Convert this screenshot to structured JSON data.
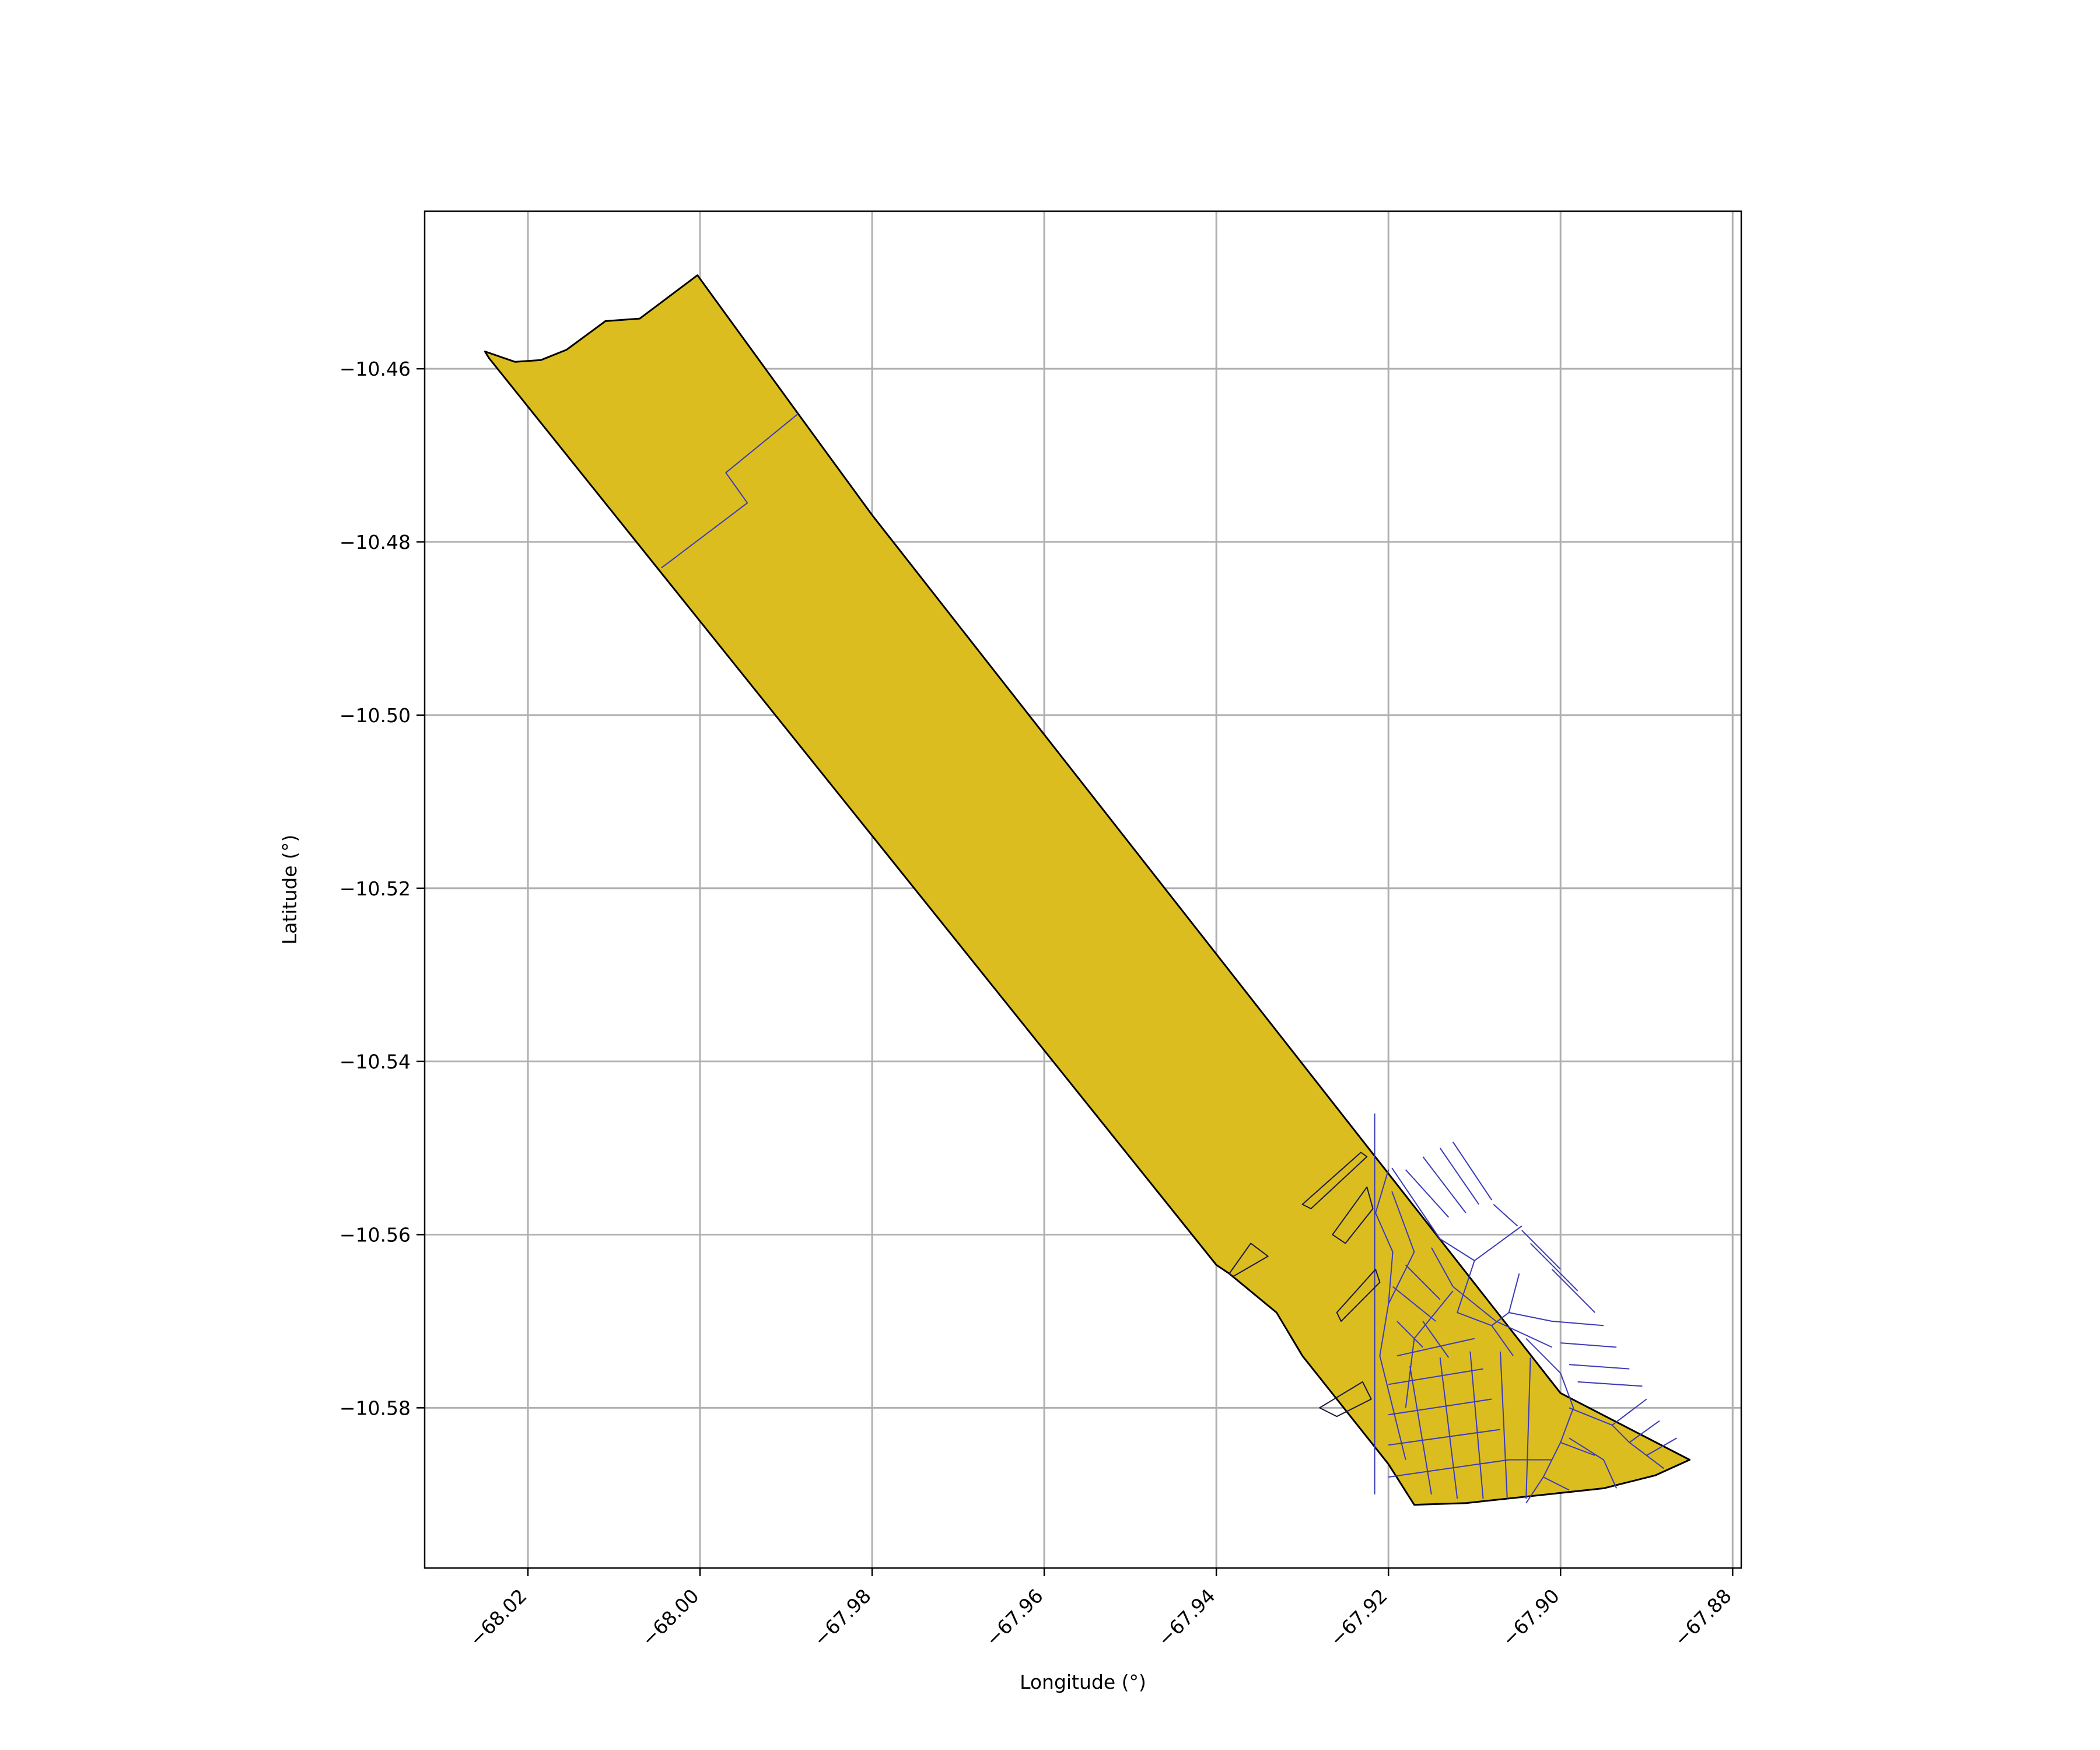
{
  "map": {
    "xlabel": "Longitude (°)",
    "ylabel": "Latitude (°)",
    "xlim": [
      -68.032,
      -67.879
    ],
    "ylim": [
      -10.5985,
      -10.4418
    ],
    "xticks": [
      -68.02,
      -68.0,
      -67.98,
      -67.96,
      -67.94,
      -67.92,
      -67.9,
      -67.88
    ],
    "xtick_labels": [
      "−68.02",
      "−68.00",
      "−67.98",
      "−67.96",
      "−67.94",
      "−67.92",
      "−67.90",
      "−67.88"
    ],
    "yticks": [
      -10.46,
      -10.48,
      -10.5,
      -10.52,
      -10.54,
      -10.56,
      -10.58
    ],
    "ytick_labels": [
      "−10.46",
      "−10.48",
      "−10.50",
      "−10.52",
      "−10.54",
      "−10.56",
      "−10.58"
    ],
    "grid": true,
    "colors": {
      "fill": "#dcbd20",
      "outline": "#000000",
      "parcel_edges": "#3b3bb8",
      "grid": "#b0b0b0"
    },
    "outline": [
      [
        -68.025,
        -10.458
      ],
      [
        -68.0215,
        -10.4592
      ],
      [
        -68.0185,
        -10.459
      ],
      [
        -68.0155,
        -10.4578
      ],
      [
        -68.011,
        -10.4545
      ],
      [
        -68.007,
        -10.4542
      ],
      [
        -68.0003,
        -10.4492
      ],
      [
        -67.9886,
        -10.4652
      ],
      [
        -67.98,
        -10.4769
      ],
      [
        -67.9,
        -10.5783
      ],
      [
        -67.885,
        -10.586
      ],
      [
        -67.889,
        -10.5878
      ],
      [
        -67.895,
        -10.5893
      ],
      [
        -67.911,
        -10.591
      ],
      [
        -67.917,
        -10.5912
      ],
      [
        -67.92,
        -10.5865
      ],
      [
        -67.93,
        -10.574
      ],
      [
        -67.933,
        -10.569
      ],
      [
        -67.9385,
        -10.5645
      ],
      [
        -67.94,
        -10.5635
      ],
      [
        -68.0245,
        -10.4588
      ]
    ],
    "parcel_polylines": [
      [
        [
          -67.9886,
          -10.4652
        ],
        [
          -67.997,
          -10.472
        ],
        [
          -67.9945,
          -10.4755
        ],
        [
          -68.0045,
          -10.483
        ]
      ],
      [
        [
          -67.9216,
          -10.546
        ],
        [
          -67.9216,
          -10.59
        ]
      ],
      [
        [
          -67.92,
          -10.5525
        ],
        [
          -67.9215,
          -10.5575
        ],
        [
          -67.9195,
          -10.562
        ],
        [
          -67.92,
          -10.568
        ],
        [
          -67.921,
          -10.574
        ],
        [
          -67.9195,
          -10.58
        ],
        [
          -67.918,
          -10.586
        ]
      ],
      [
        [
          -67.9196,
          -10.5523
        ],
        [
          -67.914,
          -10.5605
        ],
        [
          -67.91,
          -10.563
        ],
        [
          -67.9045,
          -10.559
        ]
      ],
      [
        [
          -67.915,
          -10.5615
        ],
        [
          -67.9125,
          -10.566
        ],
        [
          -67.9075,
          -10.57
        ],
        [
          -67.901,
          -10.573
        ]
      ],
      [
        [
          -67.91,
          -10.563
        ],
        [
          -67.912,
          -10.569
        ],
        [
          -67.908,
          -10.5705
        ],
        [
          -67.906,
          -10.569
        ],
        [
          -67.9048,
          -10.5645
        ]
      ],
      [
        [
          -67.9125,
          -10.5665
        ],
        [
          -67.917,
          -10.572
        ],
        [
          -67.918,
          -10.58
        ]
      ],
      [
        [
          -67.904,
          -10.572
        ],
        [
          -67.9,
          -10.576
        ],
        [
          -67.8985,
          -10.58
        ],
        [
          -67.9,
          -10.584
        ],
        [
          -67.902,
          -10.588
        ],
        [
          -67.904,
          -10.591
        ]
      ],
      [
        [
          -67.899,
          -10.58
        ],
        [
          -67.894,
          -10.582
        ],
        [
          -67.892,
          -10.584
        ],
        [
          -67.888,
          -10.587
        ]
      ],
      [
        [
          -67.899,
          -10.5835
        ],
        [
          -67.895,
          -10.586
        ],
        [
          -67.8935,
          -10.5893
        ]
      ],
      [
        [
          -67.92,
          -10.588
        ],
        [
          -67.906,
          -10.586
        ],
        [
          -67.901,
          -10.586
        ]
      ],
      [
        [
          -67.92,
          -10.5843
        ],
        [
          -67.907,
          -10.5825
        ]
      ],
      [
        [
          -67.92,
          -10.5808
        ],
        [
          -67.908,
          -10.579
        ]
      ],
      [
        [
          -67.92,
          -10.5773
        ],
        [
          -67.909,
          -10.5755
        ]
      ],
      [
        [
          -67.919,
          -10.574
        ],
        [
          -67.91,
          -10.572
        ]
      ],
      [
        [
          -67.9175,
          -10.5752
        ],
        [
          -67.915,
          -10.59
        ]
      ],
      [
        [
          -67.914,
          -10.5742
        ],
        [
          -67.912,
          -10.5905
        ]
      ],
      [
        [
          -67.9105,
          -10.5735
        ],
        [
          -67.909,
          -10.5905
        ]
      ],
      [
        [
          -67.907,
          -10.5735
        ],
        [
          -67.9062,
          -10.5905
        ]
      ],
      [
        [
          -67.9035,
          -10.5742
        ],
        [
          -67.904,
          -10.5905
        ]
      ],
      [
        [
          -67.916,
          -10.57
        ],
        [
          -67.913,
          -10.5742
        ]
      ],
      [
        [
          -67.908,
          -10.5705
        ],
        [
          -67.9055,
          -10.574
        ]
      ],
      [
        [
          -67.92,
          -10.568
        ],
        [
          -67.917,
          -10.562
        ],
        [
          -67.9196,
          -10.555
        ]
      ],
      [
        [
          -67.918,
          -10.5635
        ],
        [
          -67.914,
          -10.5675
        ]
      ],
      [
        [
          -67.9195,
          -10.566
        ],
        [
          -67.9145,
          -10.57
        ]
      ],
      [
        [
          -67.919,
          -10.57
        ],
        [
          -67.916,
          -10.573
        ]
      ],
      [
        [
          -67.918,
          -10.5525
        ],
        [
          -67.913,
          -10.558
        ]
      ],
      [
        [
          -67.916,
          -10.551
        ],
        [
          -67.911,
          -10.5575
        ]
      ],
      [
        [
          -67.914,
          -10.55
        ],
        [
          -67.9095,
          -10.5565
        ]
      ],
      [
        [
          -67.9125,
          -10.5493
        ],
        [
          -67.908,
          -10.556
        ]
      ],
      [
        [
          -67.9078,
          -10.5565
        ],
        [
          -67.905,
          -10.559
        ]
      ],
      [
        [
          -67.9045,
          -10.5595
        ],
        [
          -67.9,
          -10.564
        ]
      ],
      [
        [
          -67.9035,
          -10.561
        ],
        [
          -67.898,
          -10.5665
        ]
      ],
      [
        [
          -67.901,
          -10.564
        ],
        [
          -67.896,
          -10.569
        ]
      ],
      [
        [
          -67.901,
          -10.57
        ],
        [
          -67.895,
          -10.5705
        ]
      ],
      [
        [
          -67.9,
          -10.5725
        ],
        [
          -67.8935,
          -10.573
        ]
      ],
      [
        [
          -67.899,
          -10.575
        ],
        [
          -67.892,
          -10.5755
        ]
      ],
      [
        [
          -67.898,
          -10.577
        ],
        [
          -67.8905,
          -10.5775
        ]
      ],
      [
        [
          -67.906,
          -10.569
        ],
        [
          -67.901,
          -10.57
        ]
      ],
      [
        [
          -67.894,
          -10.582
        ],
        [
          -67.89,
          -10.579
        ]
      ],
      [
        [
          -67.892,
          -10.584
        ],
        [
          -67.8885,
          -10.5815
        ]
      ],
      [
        [
          -67.89,
          -10.5855
        ],
        [
          -67.8865,
          -10.5835
        ]
      ],
      [
        [
          -67.902,
          -10.588
        ],
        [
          -67.899,
          -10.5895
        ]
      ],
      [
        [
          -67.9,
          -10.584
        ],
        [
          -67.896,
          -10.5855
        ]
      ]
    ],
    "parcel_polygons": [
      [
        [
          -67.93,
          -10.5565
        ],
        [
          -67.9232,
          -10.5505
        ],
        [
          -67.9225,
          -10.551
        ],
        [
          -67.929,
          -10.557
        ]
      ],
      [
        [
          -67.9265,
          -10.56
        ],
        [
          -67.9225,
          -10.5545
        ],
        [
          -67.9218,
          -10.557
        ],
        [
          -67.925,
          -10.561
        ]
      ],
      [
        [
          -67.926,
          -10.569
        ],
        [
          -67.9215,
          -10.564
        ],
        [
          -67.921,
          -10.5655
        ],
        [
          -67.9255,
          -10.57
        ]
      ],
      [
        [
          -67.9385,
          -10.5645
        ],
        [
          -67.936,
          -10.561
        ],
        [
          -67.934,
          -10.5625
        ],
        [
          -67.938,
          -10.5648
        ]
      ],
      [
        [
          -67.928,
          -10.58
        ],
        [
          -67.923,
          -10.577
        ],
        [
          -67.922,
          -10.579
        ],
        [
          -67.926,
          -10.581
        ]
      ]
    ]
  }
}
